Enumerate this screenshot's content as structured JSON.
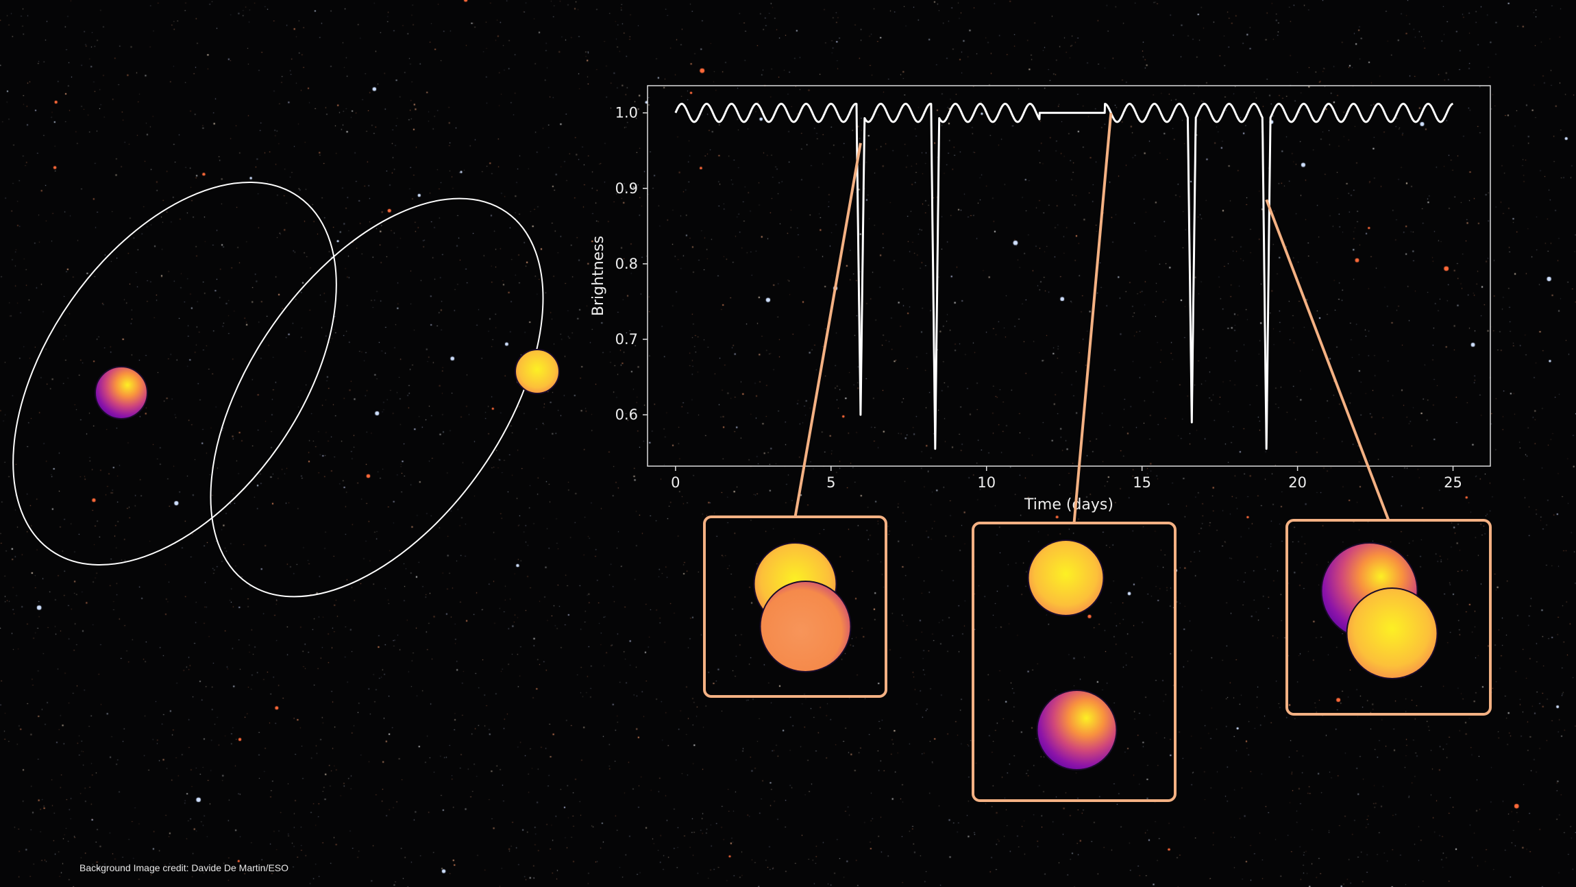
{
  "credit": "Background Image credit: Davide De Martin/ESO",
  "colors": {
    "background": "#050506",
    "curve": "#ffffff",
    "axes": "#dddddd",
    "callout": "#f4b183",
    "star_hot": "#fcf024",
    "star_mid": "#f58a4b",
    "star_cool": "#5c06a4"
  },
  "chart_data": {
    "type": "line",
    "title": "",
    "xlabel": "Time (days)",
    "ylabel": "Brightness",
    "xlim": [
      -0.9,
      26.2
    ],
    "ylim": [
      0.532,
      1.036
    ],
    "xticks": [
      0,
      5,
      10,
      15,
      20,
      25
    ],
    "yticks": [
      0.6,
      0.7,
      0.8,
      0.9,
      1.0
    ],
    "grid": false,
    "series": [
      {
        "baseline": 1.0,
        "x_range": [
          0,
          25
        ],
        "modulation_amplitude": 0.012,
        "modulation_period_days": 0.8,
        "flat_interval_days": [
          11.7,
          13.8
        ],
        "eclipses": [
          {
            "time": 5.95,
            "min_brightness": 0.6
          },
          {
            "time": 8.35,
            "min_brightness": 0.555
          },
          {
            "time": 16.6,
            "min_brightness": 0.59
          },
          {
            "time": 19.0,
            "min_brightness": 0.555
          }
        ]
      }
    ],
    "callouts": [
      {
        "time": 5.95,
        "view": "eclipse-front"
      },
      {
        "time": 14.0,
        "view": "separated"
      },
      {
        "time": 19.0,
        "view": "eclipse-back"
      }
    ]
  }
}
